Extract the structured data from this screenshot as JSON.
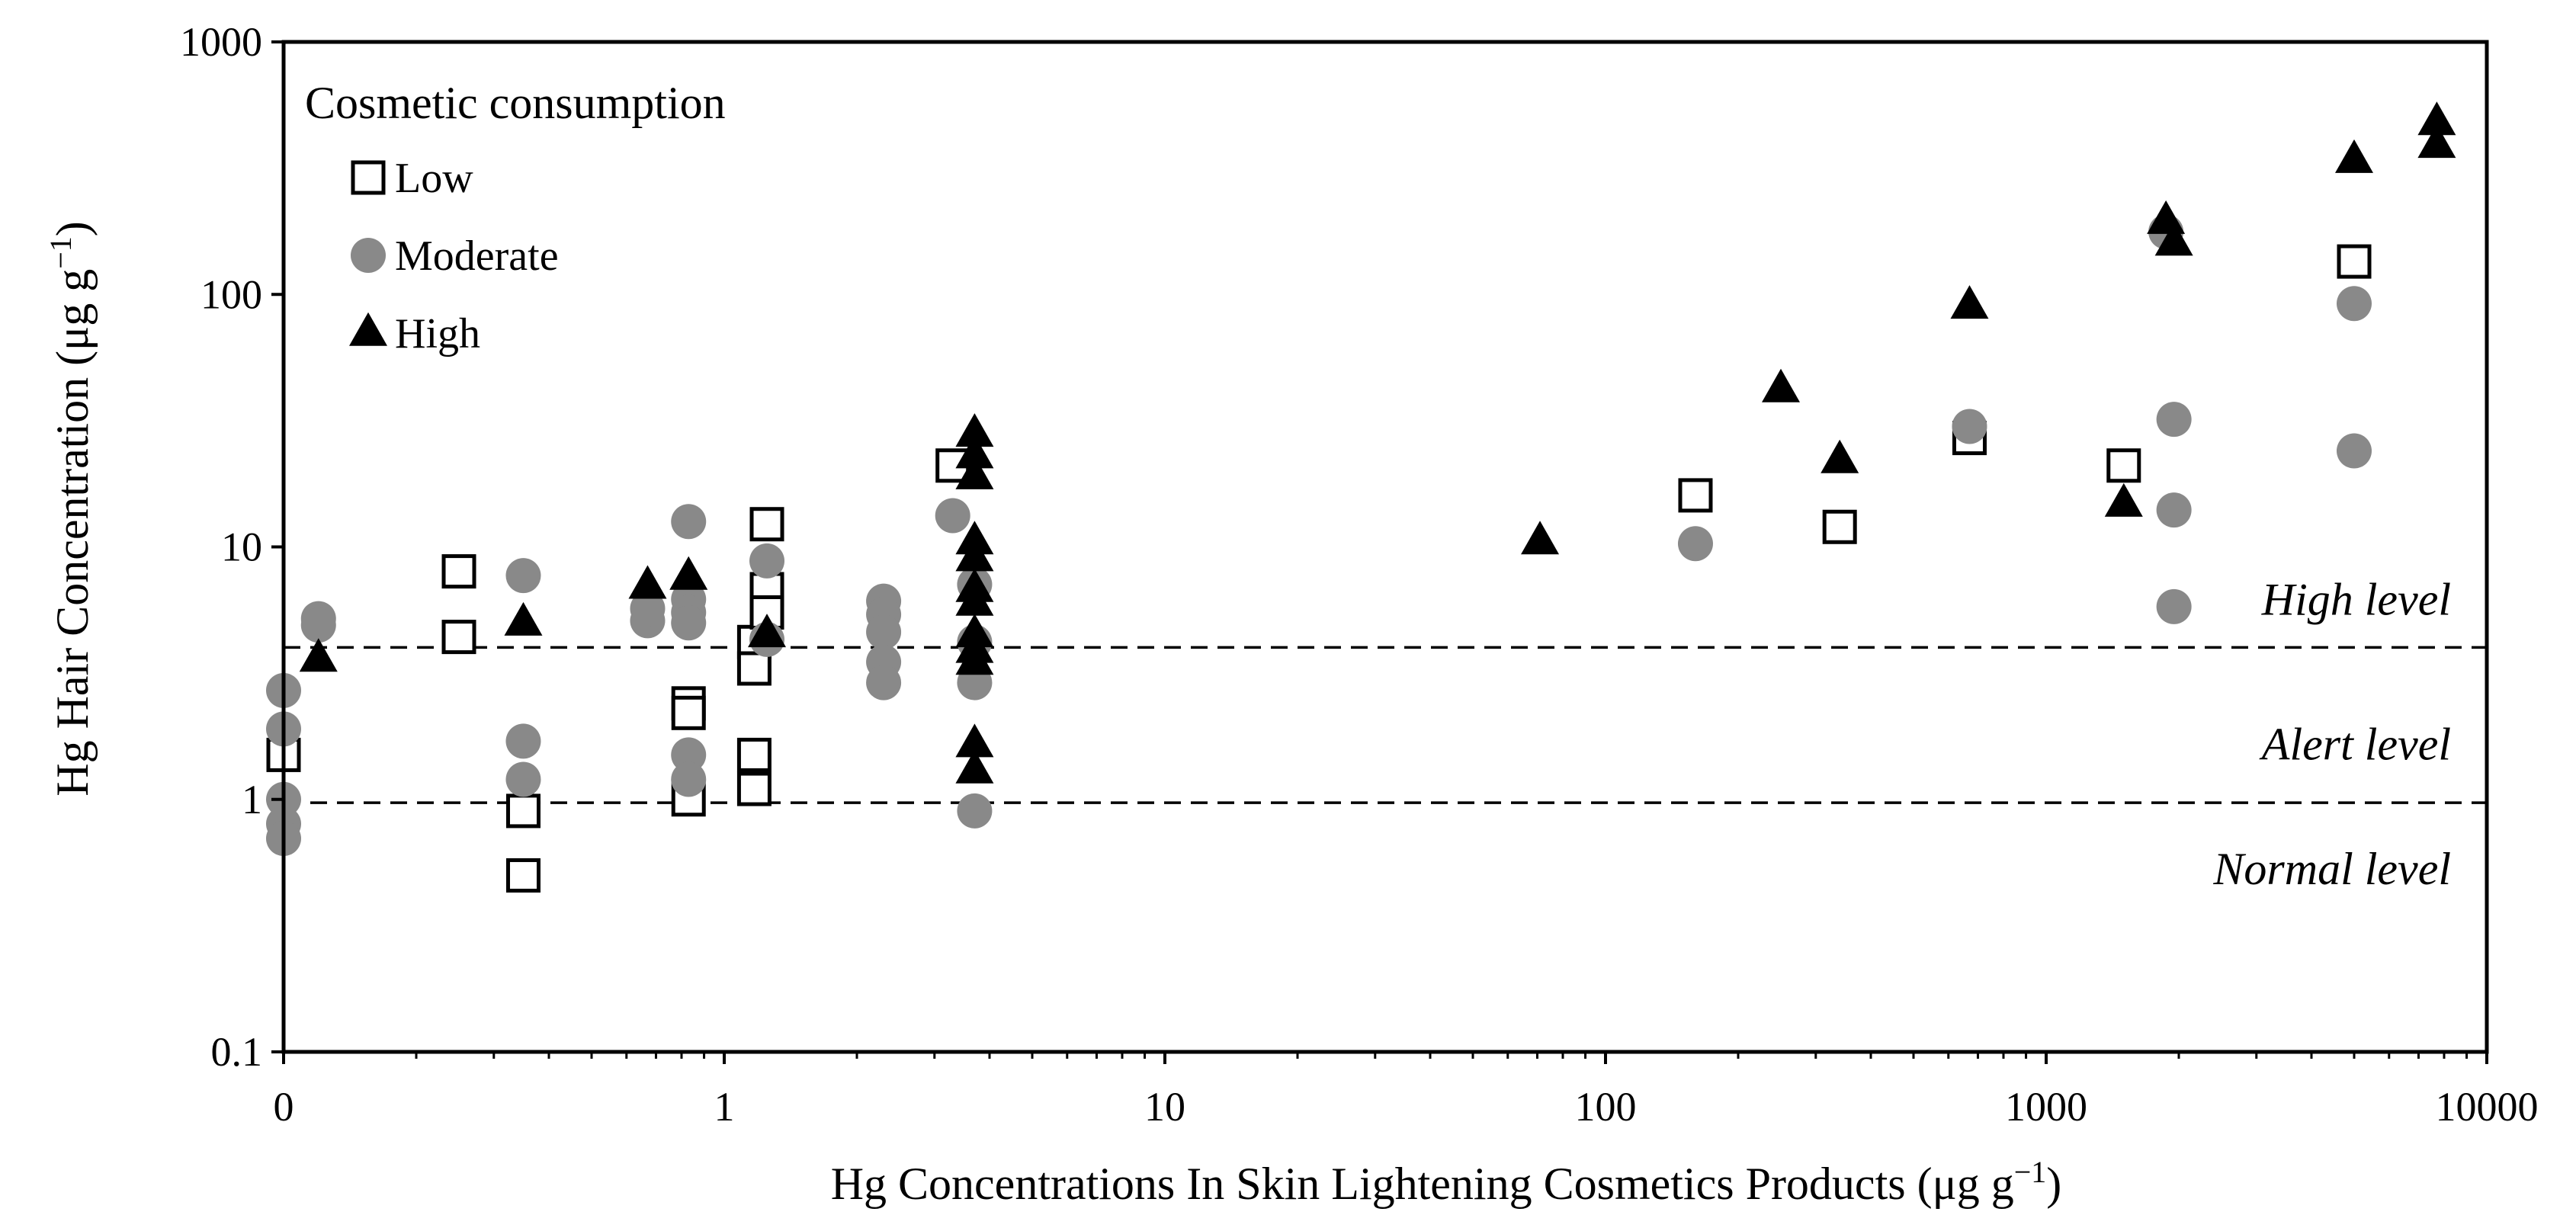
{
  "chart_data": {
    "type": "scatter",
    "xscale": "log",
    "yscale": "log",
    "xlabel_prefix": "Hg Concentrations In  Skin Lightening Cosmetics Products (μg g",
    "xlabel_sup": "−1",
    "xlabel_suffix": ")",
    "ylabel_prefix": "Hg Hair Concentration (μg g",
    "ylabel_sup": "−1",
    "ylabel_suffix": ")",
    "xlim": [
      0.1,
      10000
    ],
    "ylim": [
      0.1,
      1000
    ],
    "xticks": [
      {
        "value": 0.1,
        "label": "0"
      },
      {
        "value": 1,
        "label": "1"
      },
      {
        "value": 10,
        "label": "10"
      },
      {
        "value": 100,
        "label": "100"
      },
      {
        "value": 1000,
        "label": "1000"
      },
      {
        "value": 10000,
        "label": "10000"
      }
    ],
    "yticks": [
      {
        "value": 0.1,
        "label": "0.1"
      },
      {
        "value": 1,
        "label": "1"
      },
      {
        "value": 10,
        "label": "10"
      },
      {
        "value": 100,
        "label": "100"
      },
      {
        "value": 1000,
        "label": "1000"
      }
    ],
    "legend_title": "Cosmetic consumption",
    "legend_position": "top-left",
    "reference_lines": [
      {
        "value": 4,
        "style": "dashed"
      },
      {
        "value": 0.97,
        "style": "dashed"
      }
    ],
    "zone_labels": [
      {
        "text": "High level",
        "y": 6.2
      },
      {
        "text": "Alert level",
        "y": 1.65
      },
      {
        "text": "Normal level",
        "y": 0.53
      }
    ],
    "series": [
      {
        "name": "Low",
        "marker": "square-open",
        "color": "#000000",
        "points": [
          [
            0.1,
            1.5
          ],
          [
            0.25,
            8.0
          ],
          [
            0.25,
            4.4
          ],
          [
            0.35,
            0.9
          ],
          [
            0.35,
            0.5
          ],
          [
            0.83,
            2.4
          ],
          [
            0.83,
            2.2
          ],
          [
            0.83,
            1.0
          ],
          [
            1.17,
            4.2
          ],
          [
            1.17,
            3.3
          ],
          [
            1.17,
            1.5
          ],
          [
            1.17,
            1.1
          ],
          [
            1.25,
            12.3
          ],
          [
            1.25,
            6.8
          ],
          [
            1.25,
            5.5
          ],
          [
            3.3,
            21.0
          ],
          [
            160,
            16.0
          ],
          [
            340,
            12.0
          ],
          [
            670,
            27.0
          ],
          [
            1500,
            21.0
          ],
          [
            5000,
            135.0
          ]
        ]
      },
      {
        "name": "Moderate",
        "marker": "circle",
        "color": "#898989",
        "points": [
          [
            0.1,
            2.7
          ],
          [
            0.1,
            1.9
          ],
          [
            0.1,
            1.0
          ],
          [
            0.1,
            0.8
          ],
          [
            0.1,
            0.7
          ],
          [
            0.12,
            5.2
          ],
          [
            0.12,
            4.9
          ],
          [
            0.35,
            7.7
          ],
          [
            0.35,
            1.7
          ],
          [
            0.35,
            1.2
          ],
          [
            0.67,
            5.1
          ],
          [
            0.67,
            5.7
          ],
          [
            0.83,
            12.6
          ],
          [
            0.83,
            6.2
          ],
          [
            0.83,
            5.5
          ],
          [
            0.83,
            5.0
          ],
          [
            0.83,
            1.5
          ],
          [
            0.83,
            1.2
          ],
          [
            1.25,
            8.8
          ],
          [
            1.25,
            4.3
          ],
          [
            2.3,
            6.1
          ],
          [
            2.3,
            5.4
          ],
          [
            2.3,
            4.6
          ],
          [
            2.3,
            3.5
          ],
          [
            2.3,
            2.9
          ],
          [
            3.3,
            13.3
          ],
          [
            3.7,
            7.1
          ],
          [
            3.7,
            4.2
          ],
          [
            3.7,
            2.9
          ],
          [
            3.7,
            0.9
          ],
          [
            160,
            10.3
          ],
          [
            670,
            30.0
          ],
          [
            1870,
            177.0
          ],
          [
            1950,
            32.0
          ],
          [
            1950,
            14.0
          ],
          [
            1950,
            5.8
          ],
          [
            5000,
            92.0
          ],
          [
            5000,
            24.0
          ]
        ]
      },
      {
        "name": "High",
        "marker": "triangle",
        "color": "#000000",
        "points": [
          [
            0.12,
            3.6
          ],
          [
            0.35,
            5.0
          ],
          [
            0.67,
            7.0
          ],
          [
            0.83,
            7.6
          ],
          [
            1.25,
            4.5
          ],
          [
            3.7,
            28.0
          ],
          [
            3.7,
            23.0
          ],
          [
            3.7,
            19.0
          ],
          [
            3.7,
            10.5
          ],
          [
            3.7,
            9.0
          ],
          [
            3.7,
            6.8
          ],
          [
            3.7,
            6.0
          ],
          [
            3.7,
            4.5
          ],
          [
            3.7,
            3.9
          ],
          [
            3.7,
            3.5
          ],
          [
            3.7,
            1.65
          ],
          [
            3.7,
            1.3
          ],
          [
            71,
            10.5
          ],
          [
            250,
            42.0
          ],
          [
            340,
            22.0
          ],
          [
            670,
            90.0
          ],
          [
            1500,
            14.8
          ],
          [
            1870,
            195.0
          ],
          [
            1950,
            160.0
          ],
          [
            5000,
            340.0
          ],
          [
            7700,
            480.0
          ],
          [
            7700,
            390.0
          ]
        ]
      }
    ]
  }
}
